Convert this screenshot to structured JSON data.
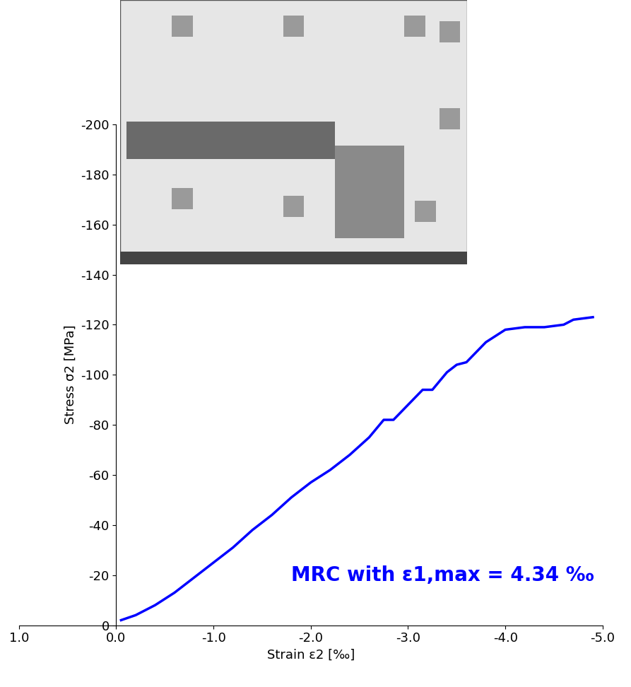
{
  "chart_data": {
    "type": "line",
    "x_label": "Strain ε2 [‰]",
    "y_label": "Stress σ2 [MPa]",
    "annotation": "MRC with ε1,max = 4.34 ‰",
    "color": "#0000ff",
    "x": [
      -0.05,
      -0.2,
      -0.4,
      -0.6,
      -0.8,
      -1.0,
      -1.2,
      -1.4,
      -1.6,
      -1.8,
      -2.0,
      -2.2,
      -2.4,
      -2.6,
      -2.75,
      -2.85,
      -3.0,
      -3.15,
      -3.25,
      -3.4,
      -3.5,
      -3.6,
      -3.8,
      -4.0,
      -4.2,
      -4.4,
      -4.6,
      -4.7,
      -4.9
    ],
    "values": [
      -2,
      -4,
      -8,
      -13,
      -19,
      -25,
      -31,
      -38,
      -44,
      -51,
      -57,
      -62,
      -68,
      -75,
      -82,
      -82,
      -88,
      -94,
      -94,
      -101,
      -104,
      -105,
      -113,
      -118,
      -119,
      -119,
      -120,
      -122,
      -123
    ],
    "xlim": [
      1.0,
      -5.0
    ],
    "xticks": [
      1.0,
      0.0,
      -1.0,
      -2.0,
      -3.0,
      -4.0,
      -5.0
    ],
    "ylim": [
      0,
      -200
    ],
    "yticks": [
      0,
      -20,
      -40,
      -60,
      -80,
      -100,
      -120,
      -140,
      -160,
      -180,
      -200
    ],
    "grid": false
  }
}
